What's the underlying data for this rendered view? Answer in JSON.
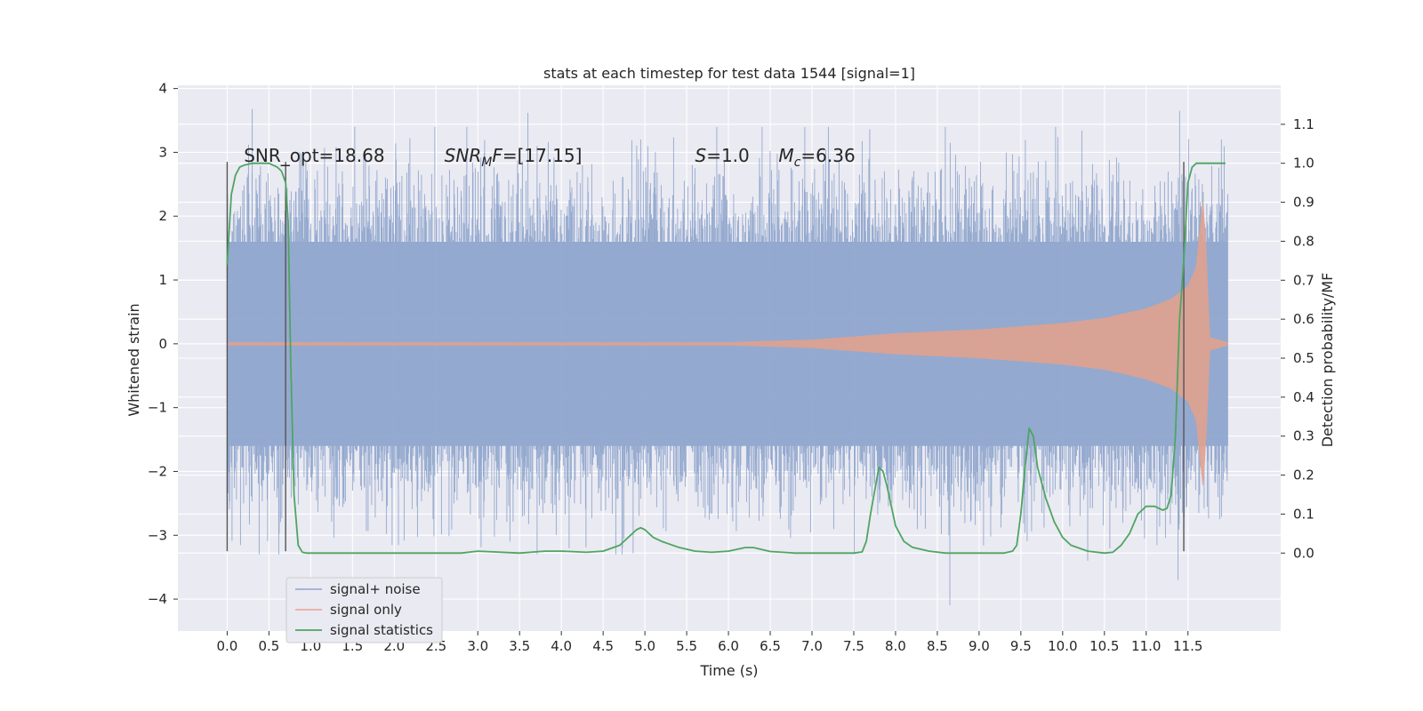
{
  "chart_data": {
    "type": "line",
    "title": "stats at each timestep for test data 1544 [signal=1]",
    "xlabel": "Time (s)",
    "ylabel_left": "Whitened strain",
    "ylabel_right": "Detection probability/MF",
    "xlim": [
      -0.59,
      12.61
    ],
    "ylim_left": [
      -4.5,
      4.05
    ],
    "ylim_right": [
      -0.2,
      1.2
    ],
    "x_ticks": [
      "0.0",
      "0.5",
      "1.0",
      "1.5",
      "2.0",
      "2.5",
      "3.0",
      "3.5",
      "4.0",
      "4.5",
      "5.0",
      "5.5",
      "6.0",
      "6.5",
      "7.0",
      "7.5",
      "8.0",
      "8.5",
      "9.0",
      "9.5",
      "10.0",
      "10.5",
      "11.0",
      "11.5"
    ],
    "x_tick_values": [
      0.0,
      0.5,
      1.0,
      1.5,
      2.0,
      2.5,
      3.0,
      3.5,
      4.0,
      4.5,
      5.0,
      5.5,
      6.0,
      6.5,
      7.0,
      7.5,
      8.0,
      8.5,
      9.0,
      9.5,
      10.0,
      10.5,
      11.0,
      11.5
    ],
    "y_left_ticks": [
      "4",
      "3",
      "2",
      "1",
      "0",
      "−1",
      "−2",
      "−3",
      "−4"
    ],
    "y_left_tick_values": [
      4,
      3,
      2,
      1,
      0,
      -1,
      -2,
      -3,
      -4
    ],
    "y_right_ticks": [
      "1.1",
      "1.0",
      "0.9",
      "0.8",
      "0.7",
      "0.6",
      "0.5",
      "0.4",
      "0.3",
      "0.2",
      "0.1",
      "0.0"
    ],
    "y_right_tick_values": [
      1.1,
      1.0,
      0.9,
      0.8,
      0.7,
      0.6,
      0.5,
      0.4,
      0.3,
      0.2,
      0.1,
      0.0
    ],
    "grid": true,
    "legend_placement": "lower-left",
    "annotations": [
      {
        "text": "SNR_opt=18.68",
        "x": 0.2
      },
      {
        "text": "SNR_MF=[17.15]",
        "x": 2.6
      },
      {
        "text": "S=1.0",
        "x": 5.6
      },
      {
        "text": "M_c=6.36",
        "x": 6.6
      }
    ],
    "vertical_lines": [
      0.0,
      0.7,
      11.45
    ],
    "vertical_line_range": [
      -3.25,
      2.85
    ],
    "series": [
      {
        "name": "signal+ noise",
        "color": "#8fa5cc",
        "t_range": [
          0.0,
          11.98
        ],
        "envelope_core": 1.6,
        "approx_extremes": [
          [
            0.3,
            3.68
          ],
          [
            3.6,
            3.62
          ],
          [
            4.95,
            3.2
          ],
          [
            11.4,
            3.65
          ],
          [
            11.9,
            3.2
          ],
          [
            8.65,
            -4.1
          ],
          [
            11.38,
            -3.7
          ],
          [
            10.3,
            -3.4
          ],
          [
            2.05,
            -3.15
          ]
        ]
      },
      {
        "name": "signal only",
        "color": "#e5a18c",
        "envelope": [
          [
            0.0,
            0.02
          ],
          [
            6.0,
            0.02
          ],
          [
            7.0,
            0.06
          ],
          [
            8.0,
            0.16
          ],
          [
            9.0,
            0.22
          ],
          [
            10.0,
            0.32
          ],
          [
            10.5,
            0.4
          ],
          [
            11.0,
            0.55
          ],
          [
            11.3,
            0.7
          ],
          [
            11.5,
            0.9
          ],
          [
            11.6,
            1.2
          ],
          [
            11.68,
            2.25
          ],
          [
            11.72,
            1.4
          ],
          [
            11.76,
            0.1
          ],
          [
            11.98,
            0.02
          ]
        ]
      },
      {
        "name": "signal statistics",
        "color": "#4ea562",
        "x": [
          0.0,
          0.05,
          0.1,
          0.15,
          0.2,
          0.3,
          0.4,
          0.5,
          0.6,
          0.65,
          0.7,
          0.73,
          0.76,
          0.8,
          0.85,
          0.9,
          0.95,
          1.0,
          1.5,
          2.0,
          2.5,
          2.8,
          3.0,
          3.5,
          3.8,
          4.0,
          4.3,
          4.5,
          4.7,
          4.8,
          4.9,
          4.95,
          5.0,
          5.1,
          5.2,
          5.4,
          5.6,
          5.8,
          6.0,
          6.2,
          6.3,
          6.5,
          6.8,
          7.0,
          7.5,
          7.6,
          7.65,
          7.7,
          7.8,
          7.85,
          7.9,
          8.0,
          8.1,
          8.2,
          8.4,
          8.6,
          9.0,
          9.3,
          9.4,
          9.45,
          9.5,
          9.55,
          9.6,
          9.65,
          9.7,
          9.8,
          9.9,
          10.0,
          10.1,
          10.3,
          10.5,
          10.6,
          10.7,
          10.8,
          10.9,
          11.0,
          11.1,
          11.2,
          11.25,
          11.3,
          11.35,
          11.4,
          11.45,
          11.5,
          11.55,
          11.6,
          11.7,
          11.8,
          11.9,
          11.95
        ],
        "y": [
          0.74,
          0.92,
          0.97,
          0.99,
          0.995,
          1.0,
          1.0,
          1.0,
          0.99,
          0.98,
          0.95,
          0.85,
          0.5,
          0.15,
          0.02,
          0.002,
          0.0,
          0.0,
          0.0,
          0.0,
          0.0,
          0.0,
          0.005,
          0.0,
          0.005,
          0.005,
          0.002,
          0.005,
          0.02,
          0.04,
          0.06,
          0.065,
          0.06,
          0.04,
          0.03,
          0.015,
          0.005,
          0.002,
          0.005,
          0.014,
          0.014,
          0.004,
          0.0,
          0.0,
          0.0,
          0.003,
          0.03,
          0.1,
          0.22,
          0.21,
          0.17,
          0.07,
          0.03,
          0.015,
          0.005,
          0.0,
          0.0,
          0.0,
          0.005,
          0.02,
          0.1,
          0.22,
          0.32,
          0.3,
          0.22,
          0.14,
          0.08,
          0.04,
          0.02,
          0.005,
          0.0,
          0.002,
          0.02,
          0.05,
          0.1,
          0.12,
          0.12,
          0.11,
          0.115,
          0.15,
          0.3,
          0.6,
          0.75,
          0.95,
          0.99,
          1.0,
          1.0,
          1.0,
          1.0,
          1.0
        ]
      }
    ]
  }
}
